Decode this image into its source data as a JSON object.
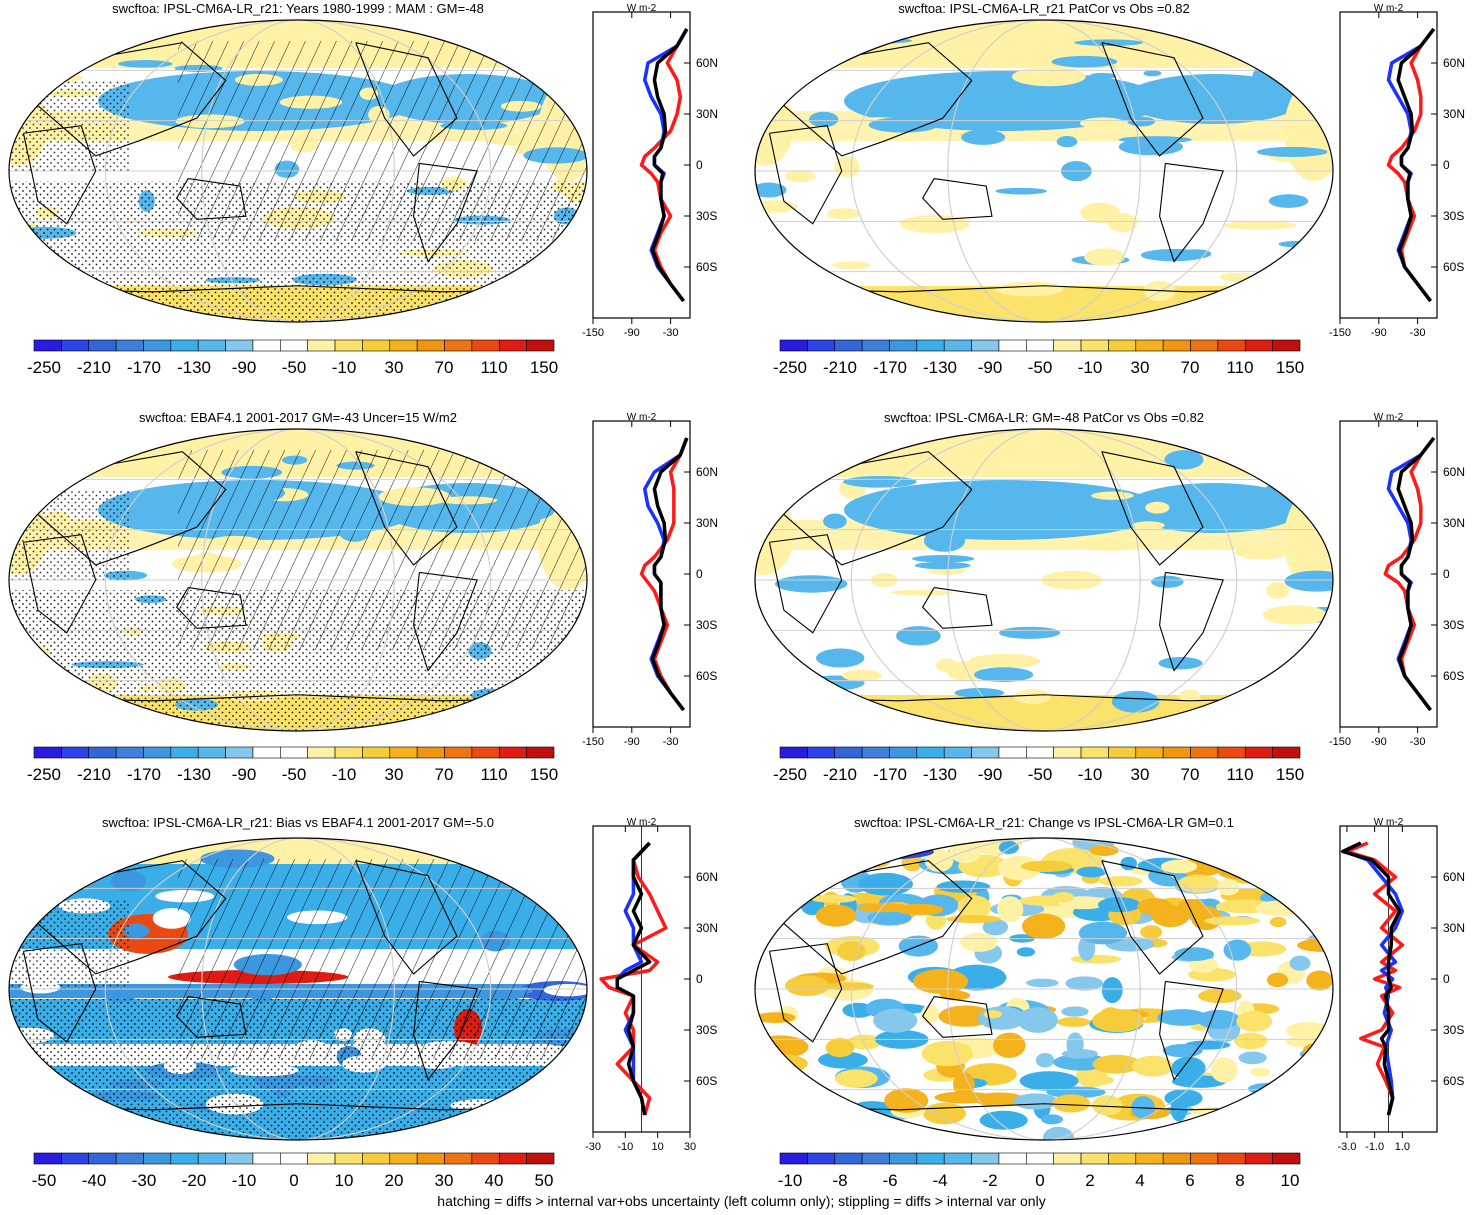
{
  "figure": {
    "footnote": "hatching = diffs > internal var+obs uncertainty (left column only); stippling = diffs > internal var only"
  },
  "colors": {
    "ramp": [
      "#2a1be0",
      "#2f44e8",
      "#3366d8",
      "#3f7fdc",
      "#3c97e0",
      "#3aaee8",
      "#55b7ec",
      "#86c8ec",
      "#ffffff",
      "#ffffff",
      "#fff2a6",
      "#fbe26a",
      "#f7cc3a",
      "#f4b21c",
      "#f19510",
      "#ee7412",
      "#ea4a12",
      "#df1c12",
      "#c00f0c"
    ],
    "mean_mam": "#000000",
    "mean_line_red": "#ff1a1a",
    "mean_line_blue": "#1a32ff",
    "grid": "#cfcfcf",
    "land": "#000000"
  },
  "chart_data": [
    {
      "type": "heatmap",
      "title": "swcftoa: IPSL-CM6A-LR_r21: Years 1980-1999 : MAM : GM=-48",
      "map": "robinson",
      "hatching": true,
      "stippling": true,
      "colorbar": {
        "ticks": [
          "-250",
          "-210",
          "-170",
          "-130",
          "-90",
          "-50",
          "-10",
          "30",
          "70",
          "110",
          "150"
        ]
      },
      "profile": {
        "unit": "W m-2",
        "xlim": [
          -150,
          0
        ],
        "xticks": [
          "-150",
          "-90",
          "-30"
        ],
        "ylim": [
          -90,
          90
        ],
        "yticks": [
          "60N",
          "30N",
          "0",
          "30S",
          "60S"
        ],
        "lat": [
          80,
          70,
          60,
          50,
          40,
          30,
          20,
          10,
          5,
          0,
          -5,
          -10,
          -20,
          -30,
          -40,
          -50,
          -60,
          -70,
          -80
        ],
        "series": [
          {
            "name": "model",
            "color": "red",
            "values": [
              -5,
              -20,
              -35,
              -20,
              -15,
              -20,
              -30,
              -55,
              -70,
              -75,
              -60,
              -50,
              -45,
              -30,
              -45,
              -55,
              -45,
              -30,
              -10
            ]
          },
          {
            "name": "obs",
            "color": "blue",
            "values": [
              -5,
              -20,
              -65,
              -70,
              -60,
              -45,
              -40,
              -45,
              -55,
              -55,
              -40,
              -45,
              -45,
              -40,
              -50,
              -60,
              -50,
              -30,
              -10
            ]
          },
          {
            "name": "multi",
            "color": "black",
            "values": [
              -5,
              -20,
              -50,
              -55,
              -50,
              -40,
              -38,
              -45,
              -55,
              -55,
              -42,
              -45,
              -45,
              -40,
              -48,
              -58,
              -48,
              -30,
              -10
            ]
          }
        ]
      }
    },
    {
      "type": "heatmap",
      "title": "swcftoa: IPSL-CM6A-LR_r21 PatCor vs Obs =0.82",
      "map": "robinson",
      "hatching": false,
      "stippling": false,
      "colorbar": {
        "ticks": [
          "-250",
          "-210",
          "-170",
          "-130",
          "-90",
          "-50",
          "-10",
          "30",
          "70",
          "110",
          "150"
        ]
      },
      "profile": {
        "unit": "W m-2",
        "xlim": [
          -150,
          0
        ],
        "xticks": [
          "-150",
          "-90",
          "-30"
        ],
        "ylim": [
          -90,
          90
        ],
        "yticks": [
          "60N",
          "30N",
          "0",
          "30S",
          "60S"
        ],
        "lat": [
          80,
          70,
          60,
          50,
          40,
          30,
          20,
          10,
          5,
          0,
          -5,
          -10,
          -20,
          -30,
          -40,
          -50,
          -60,
          -70,
          -80
        ],
        "series": [
          {
            "name": "model",
            "color": "red",
            "values": [
              -5,
              -25,
              -40,
              -30,
              -25,
              -25,
              -35,
              -55,
              -70,
              -75,
              -60,
              -50,
              -45,
              -35,
              -45,
              -55,
              -50,
              -30,
              -10
            ]
          },
          {
            "name": "obs",
            "color": "blue",
            "values": [
              -5,
              -25,
              -70,
              -75,
              -60,
              -45,
              -40,
              -45,
              -55,
              -55,
              -40,
              -45,
              -45,
              -40,
              -50,
              -60,
              -50,
              -30,
              -10
            ]
          },
          {
            "name": "multi",
            "color": "black",
            "values": [
              -5,
              -25,
              -55,
              -60,
              -50,
              -40,
              -38,
              -45,
              -55,
              -55,
              -42,
              -45,
              -45,
              -40,
              -48,
              -58,
              -50,
              -30,
              -10
            ]
          }
        ]
      }
    },
    {
      "type": "heatmap",
      "title": "swcftoa: EBAF4.1 2001-2017 GM=-43 Uncer=15 W/m2",
      "map": "robinson",
      "hatching": true,
      "stippling": true,
      "colorbar": {
        "ticks": [
          "-250",
          "-210",
          "-170",
          "-130",
          "-90",
          "-50",
          "-10",
          "30",
          "70",
          "110",
          "150"
        ]
      },
      "profile": {
        "unit": "W m-2",
        "xlim": [
          -150,
          0
        ],
        "xticks": [
          "-150",
          "-90",
          "-30"
        ],
        "ylim": [
          -90,
          90
        ],
        "yticks": [
          "60N",
          "30N",
          "0",
          "30S",
          "60S"
        ],
        "lat": [
          80,
          70,
          60,
          50,
          40,
          30,
          20,
          10,
          5,
          0,
          -5,
          -10,
          -20,
          -30,
          -40,
          -50,
          -60,
          -70,
          -80
        ],
        "series": [
          {
            "name": "model",
            "color": "red",
            "values": [
              -5,
              -15,
              -30,
              -25,
              -25,
              -25,
              -35,
              -55,
              -70,
              -75,
              -65,
              -55,
              -45,
              -35,
              -45,
              -55,
              -45,
              -30,
              -10
            ]
          },
          {
            "name": "obs",
            "color": "blue",
            "values": [
              -5,
              -15,
              -55,
              -70,
              -65,
              -50,
              -40,
              -45,
              -55,
              -55,
              -45,
              -45,
              -45,
              -40,
              -50,
              -60,
              -50,
              -30,
              -10
            ]
          },
          {
            "name": "multi",
            "color": "black",
            "values": [
              -5,
              -15,
              -45,
              -55,
              -50,
              -40,
              -38,
              -45,
              -55,
              -55,
              -45,
              -45,
              -45,
              -40,
              -48,
              -58,
              -48,
              -30,
              -10
            ]
          }
        ]
      }
    },
    {
      "type": "heatmap",
      "title": "swcftoa: IPSL-CM6A-LR: GM=-48 PatCor vs Obs =0.82",
      "map": "robinson",
      "hatching": false,
      "stippling": false,
      "colorbar": {
        "ticks": [
          "-250",
          "-210",
          "-170",
          "-130",
          "-90",
          "-50",
          "-10",
          "30",
          "70",
          "110",
          "150"
        ]
      },
      "profile": {
        "unit": "W m-2",
        "xlim": [
          -150,
          0
        ],
        "xticks": [
          "-150",
          "-90",
          "-30"
        ],
        "ylim": [
          -90,
          90
        ],
        "yticks": [
          "60N",
          "30N",
          "0",
          "30S",
          "60S"
        ],
        "lat": [
          80,
          70,
          60,
          50,
          40,
          30,
          20,
          10,
          5,
          0,
          -5,
          -10,
          -20,
          -30,
          -40,
          -50,
          -60,
          -70,
          -80
        ],
        "series": [
          {
            "name": "model",
            "color": "red",
            "values": [
              -5,
              -25,
              -40,
              -30,
              -25,
              -25,
              -35,
              -55,
              -75,
              -80,
              -60,
              -50,
              -45,
              -35,
              -45,
              -55,
              -50,
              -30,
              -10
            ]
          },
          {
            "name": "obs",
            "color": "blue",
            "values": [
              -5,
              -25,
              -70,
              -75,
              -60,
              -45,
              -40,
              -45,
              -55,
              -55,
              -40,
              -45,
              -45,
              -40,
              -50,
              -60,
              -50,
              -30,
              -10
            ]
          },
          {
            "name": "multi",
            "color": "black",
            "values": [
              -5,
              -25,
              -55,
              -60,
              -50,
              -40,
              -38,
              -45,
              -55,
              -55,
              -42,
              -45,
              -45,
              -40,
              -48,
              -58,
              -50,
              -30,
              -10
            ]
          }
        ]
      }
    },
    {
      "type": "heatmap",
      "title": "swcftoa: IPSL-CM6A-LR_r21: Bias vs EBAF4.1 2001-2017 GM=-5.0",
      "map": "robinson",
      "hatching": true,
      "stippling": true,
      "colorbar": {
        "ticks": [
          "-50",
          "-40",
          "-30",
          "-20",
          "-10",
          "0",
          "10",
          "20",
          "30",
          "40",
          "50"
        ]
      },
      "profile": {
        "unit": "W m-2",
        "xlim": [
          -30,
          30
        ],
        "xticks": [
          "-30",
          "-10",
          "10",
          "30"
        ],
        "ylim": [
          -90,
          90
        ],
        "yticks": [
          "60N",
          "30N",
          "0",
          "30S",
          "60S"
        ],
        "lat": [
          80,
          70,
          60,
          50,
          40,
          30,
          20,
          10,
          5,
          0,
          -5,
          -10,
          -20,
          -30,
          -40,
          -50,
          -60,
          -70,
          -80
        ],
        "series": [
          {
            "name": "model",
            "color": "red",
            "values": [
              5,
              -5,
              -2,
              5,
              10,
              15,
              -5,
              10,
              5,
              -25,
              -20,
              -5,
              -10,
              -5,
              -5,
              -15,
              -5,
              5,
              2
            ]
          },
          {
            "name": "obs",
            "color": "blue",
            "values": [
              5,
              -5,
              -5,
              -5,
              -10,
              -5,
              -5,
              0,
              -10,
              -15,
              -15,
              -5,
              -5,
              -10,
              -5,
              -5,
              -5,
              0,
              2
            ]
          },
          {
            "name": "multi",
            "color": "black",
            "values": [
              5,
              -5,
              -5,
              0,
              -5,
              0,
              -5,
              5,
              -5,
              -15,
              -15,
              -5,
              -5,
              -8,
              -5,
              -8,
              -5,
              0,
              2
            ]
          }
        ]
      }
    },
    {
      "type": "heatmap",
      "title": "swcftoa: IPSL-CM6A-LR_r21: Change vs IPSL-CM6A-LR GM=0.1",
      "map": "robinson",
      "hatching": false,
      "stippling": false,
      "colorbar": {
        "ticks": [
          "-10",
          "-8",
          "-6",
          "-4",
          "-2",
          "0",
          "2",
          "4",
          "6",
          "8",
          "10"
        ]
      },
      "profile": {
        "unit": "W m-2",
        "xlim": [
          -3.5,
          3.5
        ],
        "xticks": [
          "-3.0",
          "-1.0",
          "1.0"
        ],
        "ylim": [
          -90,
          90
        ],
        "yticks": [
          "60N",
          "30N",
          "0",
          "30S",
          "60S"
        ],
        "lat": [
          80,
          75,
          70,
          60,
          50,
          40,
          30,
          20,
          10,
          5,
          0,
          -5,
          -10,
          -20,
          -30,
          -35,
          -40,
          -50,
          -60,
          -70,
          -80
        ],
        "series": [
          {
            "name": "model",
            "color": "red",
            "values": [
              -1.5,
              -3.0,
              -1.0,
              0.5,
              -1.0,
              0.5,
              -0.5,
              1.0,
              -0.5,
              0.5,
              -1.0,
              0.8,
              -0.5,
              0.3,
              -0.5,
              -2.0,
              -0.3,
              -0.8,
              -0.2,
              0.3,
              0.0
            ]
          },
          {
            "name": "obs",
            "color": "blue",
            "values": [
              -2.0,
              -3.2,
              -1.5,
              -0.5,
              0.5,
              1.0,
              0.5,
              -0.5,
              0.5,
              -0.5,
              0.3,
              -0.2,
              0.0,
              -0.3,
              0.2,
              0.0,
              -0.2,
              0.0,
              0.2,
              0.3,
              0.0
            ]
          },
          {
            "name": "multi",
            "color": "black",
            "values": [
              -2.0,
              -3.3,
              -1.2,
              0.0,
              0.0,
              0.8,
              0.2,
              0.2,
              0.0,
              0.0,
              0.0,
              0.2,
              -0.2,
              0.0,
              0.0,
              -0.5,
              -0.2,
              -0.3,
              0.0,
              0.3,
              0.0
            ]
          }
        ]
      }
    }
  ]
}
